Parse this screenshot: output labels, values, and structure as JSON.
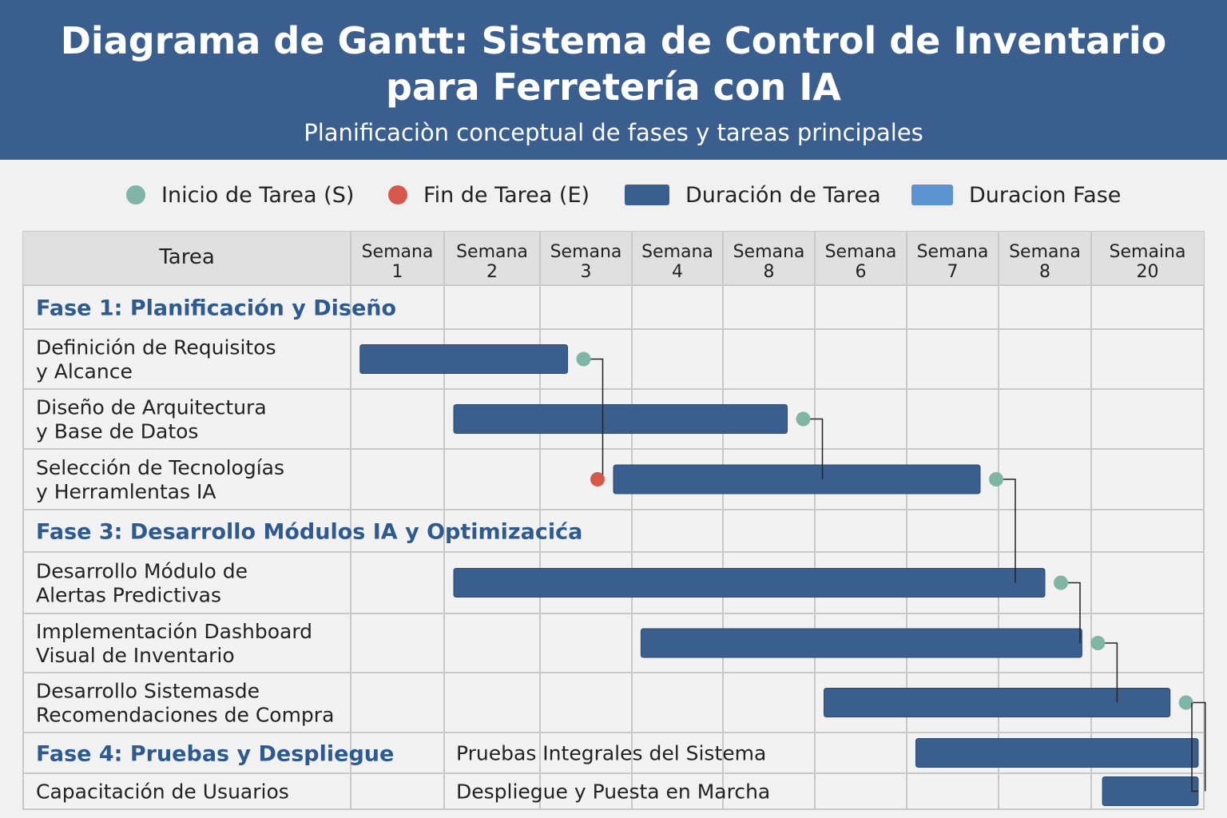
{
  "header": {
    "title_line1": "Diagrama de Gantt: Sistema de Control de Inventario",
    "title_line2": "para Ferretería con IA",
    "subtitle": "Planificaciòn conceptual de fases y tareas principales"
  },
  "legend": {
    "start": "Inicio de Tarea (S)",
    "end": "Fin de Tarea (E)",
    "task": "Duración de Tarea",
    "phase": "Duracion Fase"
  },
  "colors": {
    "header_bg": "#3a5f8f",
    "bar": "#3a5f8f",
    "phase_bar": "#5b93d3",
    "start_marker": "#7fb5a4",
    "end_marker": "#d5584b",
    "phase_text": "#2e5a8f",
    "grid": "#c8c8c8",
    "table_header_bg": "#e0e0e0"
  },
  "chart_data": {
    "type": "gantt",
    "column_header": "Tarea",
    "weeks": [
      [
        "Semana",
        "1"
      ],
      [
        "Semana",
        "2"
      ],
      [
        "Semana",
        "3"
      ],
      [
        "Semana",
        "4"
      ],
      [
        "Semana",
        "8"
      ],
      [
        "Semana",
        "6"
      ],
      [
        "Semana",
        "7"
      ],
      [
        "Semana",
        "8"
      ],
      [
        "Semaina",
        "20"
      ]
    ],
    "rows": [
      {
        "kind": "phase",
        "label": "Fase 1: Planificación y Diseño"
      },
      {
        "kind": "task",
        "label": [
          "Definición de Requisitos",
          "y Alcance"
        ],
        "start": 1.1,
        "end": 3.3
      },
      {
        "kind": "task",
        "label": [
          "Diseño de Arquitectura",
          "y Base de Datos"
        ],
        "start": 2.1,
        "end": 5.7
      },
      {
        "kind": "task",
        "label": [
          "Selección de Tecnologías",
          "y Herramlentas IA"
        ],
        "start": 3.8,
        "end": 7.8
      },
      {
        "kind": "phase",
        "label": "Fase 3: Desarrollo Módulos IA y Optimizacića"
      },
      {
        "kind": "task",
        "label": [
          "Desarrollo Módulo de",
          "Alertas Predictivas"
        ],
        "start": 2.1,
        "end": 8.5
      },
      {
        "kind": "task",
        "label": [
          "Implementación  Dashboard",
          "Visual de Inventario"
        ],
        "start": 4.1,
        "end": 8.9
      },
      {
        "kind": "task",
        "label": [
          "Desarrollo Sistemasde",
          "Recomendaciones de Compra"
        ],
        "start": 6.1,
        "end": 9.7
      },
      {
        "kind": "phase-task",
        "label": "Fase 4: Pruebas y Despliegue",
        "task_label": "Pruebas Integrales del Sistema",
        "start": 7.1,
        "end": 9.95
      },
      {
        "kind": "task-inline",
        "label": "Capacitación de Usuarios",
        "task_label": "Despliegue y Puesta en Marcha",
        "start": 9.1,
        "end": 9.95
      }
    ],
    "start_markers_after_row": [
      1,
      2,
      3,
      5,
      6,
      7
    ],
    "end_marker_row": 3,
    "dependencies": [
      [
        1,
        3
      ],
      [
        2,
        3
      ],
      [
        3,
        5
      ],
      [
        5,
        6
      ],
      [
        6,
        7
      ],
      [
        7,
        9
      ]
    ]
  }
}
